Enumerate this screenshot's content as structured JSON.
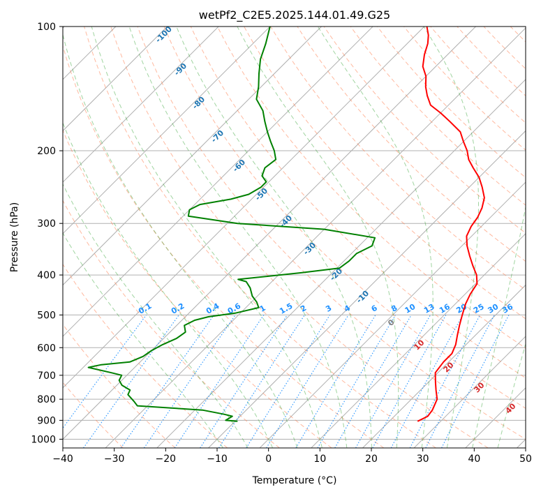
{
  "chart_data": {
    "type": "line",
    "title": "wetPf2_C2E5.2025.144.01.49.G25",
    "xlabel": "Temperature (°C)",
    "ylabel": "Pressure (hPa)",
    "xlim": [
      -40,
      50
    ],
    "ylim": [
      1050,
      100
    ],
    "y_scale": "log",
    "grid": true,
    "x_ticks": [
      "−40",
      "−30",
      "−20",
      "−10",
      "0",
      "10",
      "20",
      "30",
      "40",
      "50"
    ],
    "y_ticks": [
      "100",
      "200",
      "300",
      "400",
      "500",
      "600",
      "700",
      "800",
      "900",
      "1000"
    ],
    "colors": {
      "temperature": "#ff0000",
      "dewpoint": "#008000",
      "dry_adiabat": "#ff7f50",
      "moist_adiabat": "#2ca02c",
      "mixing_ratio": "#1e90ff",
      "dry_label": "#1f77b4",
      "moist_label": "#d62728",
      "zero_label": "#808080"
    },
    "series": [
      {
        "name": "",
        "points": [
          [
            25.5,
            905
          ],
          [
            26.5,
            880
          ],
          [
            26.2,
            850
          ],
          [
            25.0,
            800
          ],
          [
            23.0,
            760
          ],
          [
            21.5,
            730
          ],
          [
            19.5,
            690
          ],
          [
            19.0,
            650
          ],
          [
            19.0,
            620
          ],
          [
            18.0,
            590
          ],
          [
            16.5,
            560
          ],
          [
            15.0,
            530
          ],
          [
            13.5,
            500
          ],
          [
            12.0,
            470
          ],
          [
            11.0,
            445
          ],
          [
            10.3,
            420
          ],
          [
            8.5,
            400
          ],
          [
            6.0,
            380
          ],
          [
            3.5,
            360
          ],
          [
            1.0,
            340
          ],
          [
            -1.0,
            322
          ],
          [
            -2.0,
            305
          ],
          [
            -2.5,
            290
          ],
          [
            -3.5,
            275
          ],
          [
            -5.0,
            260
          ],
          [
            -7.5,
            245
          ],
          [
            -10.0,
            232
          ],
          [
            -13.0,
            220
          ],
          [
            -15.5,
            210
          ],
          [
            -17.5,
            200
          ],
          [
            -20.0,
            190
          ],
          [
            -22.5,
            180
          ],
          [
            -26.5,
            170
          ],
          [
            -30.0,
            162
          ],
          [
            -33.5,
            155
          ],
          [
            -36.0,
            147
          ],
          [
            -38.0,
            140
          ],
          [
            -40.0,
            132
          ],
          [
            -42.5,
            125
          ],
          [
            -44.5,
            117
          ],
          [
            -46.0,
            110
          ],
          [
            -47.5,
            105
          ],
          [
            -49.5,
            100
          ]
        ]
      },
      {
        "name": "",
        "points": [
          [
            -9.5,
            905
          ],
          [
            -12.0,
            900
          ],
          [
            -11.5,
            880
          ],
          [
            -13.5,
            870
          ],
          [
            -18.5,
            850
          ],
          [
            -32.0,
            830
          ],
          [
            -33.5,
            810
          ],
          [
            -36.0,
            780
          ],
          [
            -36.5,
            760
          ],
          [
            -39.0,
            740
          ],
          [
            -40.5,
            720
          ],
          [
            -41.0,
            700
          ],
          [
            -43.5,
            690
          ],
          [
            -49.0,
            670
          ],
          [
            -47.0,
            660
          ],
          [
            -42.0,
            650
          ],
          [
            -40.5,
            630
          ],
          [
            -40.0,
            610
          ],
          [
            -39.0,
            590
          ],
          [
            -37.5,
            570
          ],
          [
            -37.0,
            550
          ],
          [
            -38.5,
            530
          ],
          [
            -37.5,
            515
          ],
          [
            -35.5,
            505
          ],
          [
            -31.0,
            495
          ],
          [
            -27.5,
            480
          ],
          [
            -29.0,
            465
          ],
          [
            -31.0,
            450
          ],
          [
            -33.0,
            430
          ],
          [
            -35.0,
            415
          ],
          [
            -37.0,
            410
          ],
          [
            -26.0,
            395
          ],
          [
            -19.5,
            385
          ],
          [
            -19.0,
            370
          ],
          [
            -19.0,
            355
          ],
          [
            -17.5,
            340
          ],
          [
            -18.5,
            325
          ],
          [
            -30.0,
            310
          ],
          [
            -48.0,
            300
          ],
          [
            -59.0,
            288
          ],
          [
            -60.0,
            278
          ],
          [
            -59.0,
            270
          ],
          [
            -54.0,
            262
          ],
          [
            -51.5,
            255
          ],
          [
            -50.5,
            245
          ],
          [
            -50.5,
            238
          ],
          [
            -52.5,
            230
          ],
          [
            -53.5,
            220
          ],
          [
            -53.0,
            210
          ],
          [
            -55.0,
            200
          ],
          [
            -57.5,
            190
          ],
          [
            -60.0,
            180
          ],
          [
            -62.5,
            170
          ],
          [
            -65.0,
            160
          ],
          [
            -68.5,
            150
          ],
          [
            -70.5,
            140
          ],
          [
            -73.0,
            130
          ],
          [
            -75.5,
            120
          ],
          [
            -77.5,
            110
          ],
          [
            -80.0,
            100
          ]
        ]
      }
    ],
    "dry_adiabat_labels": [
      "-100",
      "-90",
      "-80",
      "-70",
      "-60",
      "-50",
      "-40",
      "-30",
      "-20",
      "-10",
      "0",
      "10",
      "20",
      "30",
      "40"
    ],
    "mixing_ratio_labels": [
      "0.1",
      "0.2",
      "0.4",
      "0.6",
      "1",
      "1.5",
      "2",
      "3",
      "4",
      "6",
      "8",
      "10",
      "13",
      "16",
      "20",
      "25",
      "30",
      "36"
    ]
  }
}
